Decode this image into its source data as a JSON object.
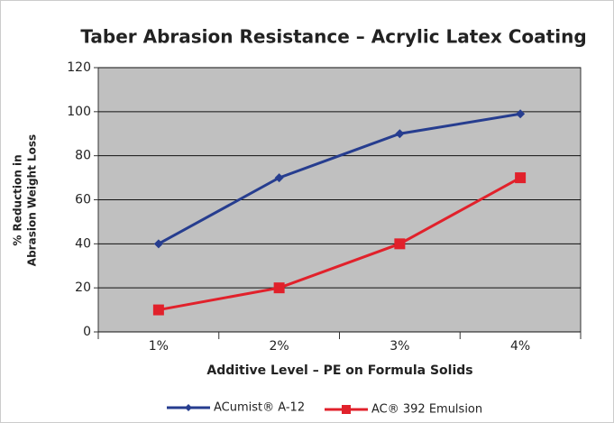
{
  "chart_data": {
    "type": "line",
    "title": "Taber Abrasion Resistance – Acrylic Latex Coating",
    "xlabel": "Additive Level – PE on Formula Solids",
    "ylabel": [
      "% Reduction in",
      "Abrasion Weight Loss"
    ],
    "categories": [
      "1%",
      "2%",
      "3%",
      "4%"
    ],
    "series": [
      {
        "name": "ACumist® A-12",
        "color": "#263d8f",
        "marker": "diamond",
        "values": [
          40,
          70,
          90,
          99
        ]
      },
      {
        "name": "AC® 392 Emulsion",
        "color": "#e1212b",
        "marker": "square",
        "values": [
          10,
          20,
          40,
          70
        ]
      }
    ],
    "ylim": [
      0,
      120
    ],
    "yticks": [
      0,
      20,
      40,
      60,
      80,
      100,
      120
    ],
    "grid": true,
    "legend": "bottom",
    "background": "#c0c0c0"
  }
}
